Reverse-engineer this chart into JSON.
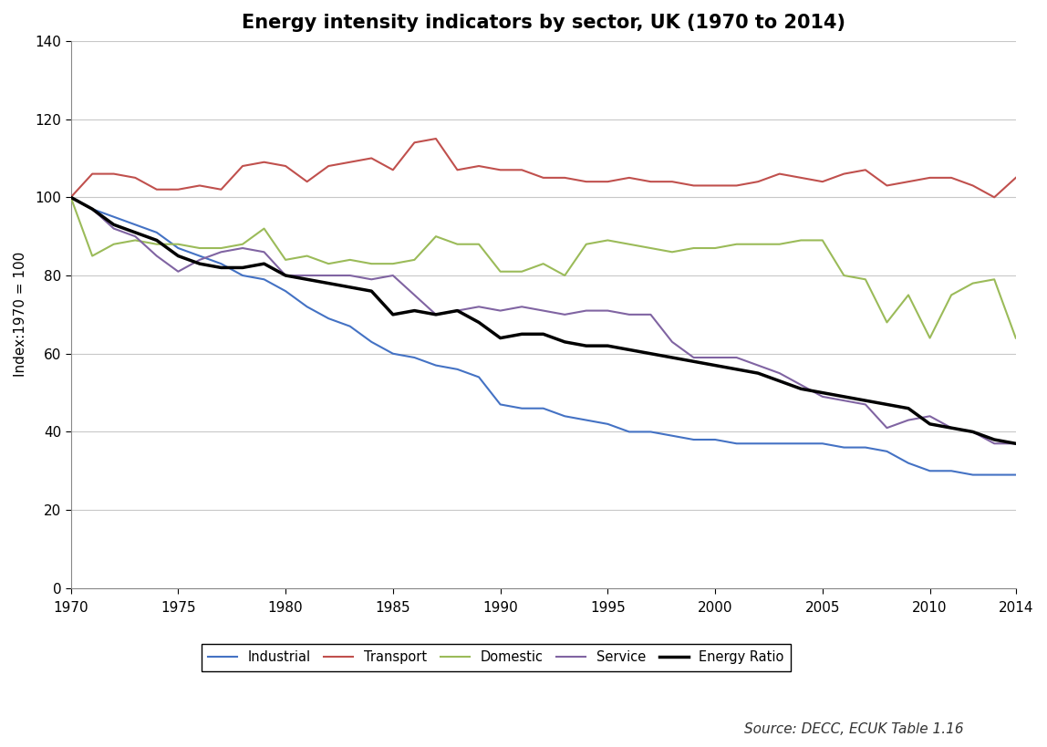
{
  "title": "Energy intensity indicators by sector, UK (1970 to 2014)",
  "ylabel": "Index:1970 = 100",
  "source": "Source: DECC, ECUK Table 1.16",
  "years": [
    1970,
    1971,
    1972,
    1973,
    1974,
    1975,
    1976,
    1977,
    1978,
    1979,
    1980,
    1981,
    1982,
    1983,
    1984,
    1985,
    1986,
    1987,
    1988,
    1989,
    1990,
    1991,
    1992,
    1993,
    1994,
    1995,
    1996,
    1997,
    1998,
    1999,
    2000,
    2001,
    2002,
    2003,
    2004,
    2005,
    2006,
    2007,
    2008,
    2009,
    2010,
    2011,
    2012,
    2013,
    2014
  ],
  "industrial": [
    100,
    97,
    95,
    93,
    91,
    87,
    85,
    83,
    80,
    79,
    76,
    72,
    69,
    67,
    63,
    60,
    59,
    57,
    56,
    54,
    47,
    46,
    46,
    44,
    43,
    42,
    40,
    40,
    39,
    38,
    38,
    37,
    37,
    37,
    37,
    37,
    36,
    36,
    35,
    32,
    30,
    30,
    29,
    29,
    29
  ],
  "transport": [
    100,
    106,
    106,
    105,
    102,
    102,
    103,
    102,
    108,
    109,
    108,
    104,
    108,
    109,
    110,
    107,
    114,
    115,
    107,
    108,
    107,
    107,
    105,
    105,
    104,
    104,
    105,
    104,
    104,
    103,
    103,
    103,
    104,
    106,
    105,
    104,
    106,
    107,
    103,
    104,
    105,
    105,
    103,
    100,
    105
  ],
  "domestic": [
    100,
    85,
    88,
    89,
    88,
    88,
    87,
    87,
    88,
    92,
    84,
    85,
    83,
    84,
    83,
    83,
    84,
    90,
    88,
    88,
    81,
    81,
    83,
    80,
    88,
    89,
    88,
    87,
    86,
    87,
    87,
    88,
    88,
    88,
    89,
    89,
    80,
    79,
    68,
    75,
    64,
    75,
    78,
    79,
    64
  ],
  "service": [
    100,
    97,
    92,
    90,
    85,
    81,
    84,
    86,
    87,
    86,
    80,
    80,
    80,
    80,
    79,
    80,
    75,
    70,
    71,
    72,
    71,
    72,
    71,
    70,
    71,
    71,
    70,
    70,
    63,
    59,
    59,
    59,
    57,
    55,
    52,
    49,
    48,
    47,
    41,
    43,
    44,
    41,
    40,
    37,
    37
  ],
  "energy_ratio": [
    100,
    97,
    93,
    91,
    89,
    85,
    83,
    82,
    82,
    83,
    80,
    79,
    78,
    77,
    76,
    70,
    71,
    70,
    71,
    68,
    64,
    65,
    65,
    63,
    62,
    62,
    61,
    60,
    59,
    58,
    57,
    56,
    55,
    53,
    51,
    50,
    49,
    48,
    47,
    46,
    42,
    41,
    40,
    38,
    37
  ],
  "colors": {
    "industrial": "#4472C4",
    "transport": "#C0504D",
    "domestic": "#9BBB59",
    "service": "#8064A2",
    "energy_ratio": "#000000"
  },
  "ylim": [
    0,
    140
  ],
  "yticks": [
    0,
    20,
    40,
    60,
    80,
    100,
    120,
    140
  ],
  "xticks": [
    1970,
    1975,
    1980,
    1985,
    1990,
    1995,
    2000,
    2005,
    2010,
    2014
  ],
  "title_fontsize": 15,
  "label_fontsize": 11,
  "tick_fontsize": 11,
  "legend_fontsize": 10.5,
  "source_fontsize": 11,
  "linewidth": 1.5,
  "energy_ratio_linewidth": 2.5
}
